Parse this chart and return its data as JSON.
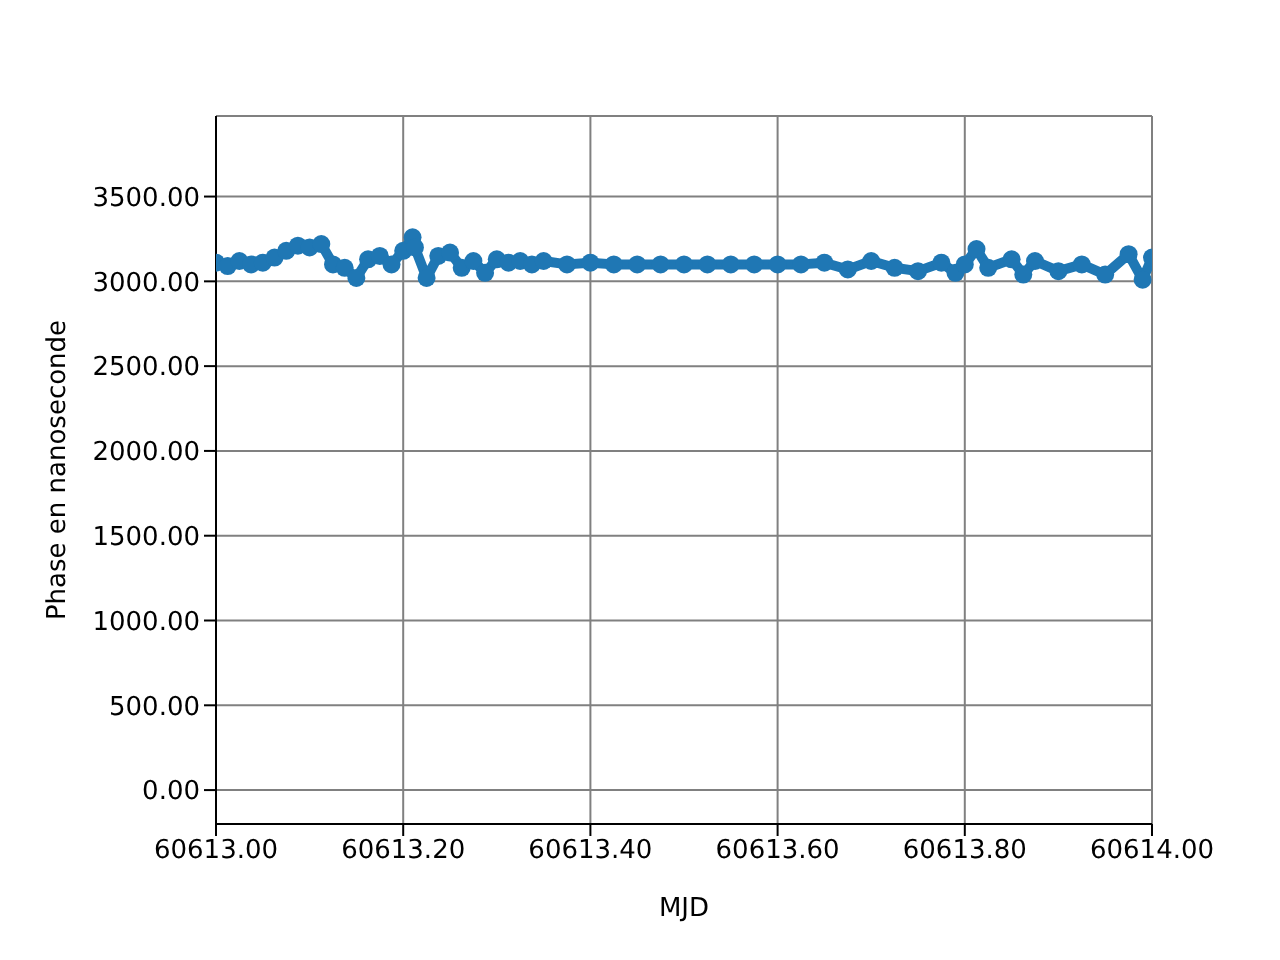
{
  "chart_data": {
    "type": "line",
    "xlabel": "MJD",
    "ylabel": "Phase en nanoseconde",
    "x": [
      60613.0,
      60613.0125,
      60613.025,
      60613.0375,
      60613.05,
      60613.0625,
      60613.075,
      60613.0875,
      60613.1,
      60613.1125,
      60613.125,
      60613.1375,
      60613.15,
      60613.1625,
      60613.175,
      60613.1875,
      60613.2,
      60613.21,
      60613.2125,
      60613.225,
      60613.2375,
      60613.25,
      60613.2625,
      60613.275,
      60613.2875,
      60613.3,
      60613.3125,
      60613.325,
      60613.3375,
      60613.35,
      60613.375,
      60613.4,
      60613.425,
      60613.45,
      60613.475,
      60613.5,
      60613.525,
      60613.55,
      60613.575,
      60613.6,
      60613.625,
      60613.65,
      60613.675,
      60613.7,
      60613.725,
      60613.75,
      60613.775,
      60613.79,
      60613.8,
      60613.8125,
      60613.825,
      60613.85,
      60613.8625,
      60613.875,
      60613.9,
      60613.925,
      60613.95,
      60613.975,
      60613.99,
      60614.0
    ],
    "series": [
      {
        "color": "#1f77b4",
        "values": [
          3110,
          3090,
          3120,
          3100,
          3110,
          3140,
          3180,
          3210,
          3200,
          3220,
          3100,
          3080,
          3020,
          3130,
          3150,
          3100,
          3180,
          3260,
          3200,
          3020,
          3150,
          3170,
          3080,
          3120,
          3050,
          3130,
          3110,
          3120,
          3100,
          3120,
          3100,
          3110,
          3100,
          3100,
          3100,
          3100,
          3100,
          3100,
          3100,
          3100,
          3100,
          3110,
          3070,
          3120,
          3080,
          3060,
          3110,
          3050,
          3100,
          3190,
          3080,
          3130,
          3040,
          3120,
          3060,
          3100,
          3040,
          3160,
          3010,
          3140
        ]
      }
    ],
    "xlim": [
      60613.0,
      60614.0
    ],
    "xticks": [
      {
        "value": 60613.0,
        "label": "60613.00"
      },
      {
        "value": 60613.2,
        "label": "60613.20"
      },
      {
        "value": 60613.4,
        "label": "60613.40"
      },
      {
        "value": 60613.6,
        "label": "60613.60"
      },
      {
        "value": 60613.8,
        "label": "60613.80"
      },
      {
        "value": 60614.0,
        "label": "60614.00"
      }
    ],
    "ylim": [
      -200,
      3975
    ],
    "yticks": [
      {
        "value": 0,
        "label": "0.00"
      },
      {
        "value": 500,
        "label": "500.00"
      },
      {
        "value": 1000,
        "label": "1000.00"
      },
      {
        "value": 1500,
        "label": "1500.00"
      },
      {
        "value": 2000,
        "label": "2000.00"
      },
      {
        "value": 2500,
        "label": "2500.00"
      },
      {
        "value": 3000,
        "label": "3000.00"
      },
      {
        "value": 3500,
        "label": "3500.00"
      }
    ],
    "grid": true,
    "marker": "circle",
    "line_style": "solid",
    "legend": false
  }
}
